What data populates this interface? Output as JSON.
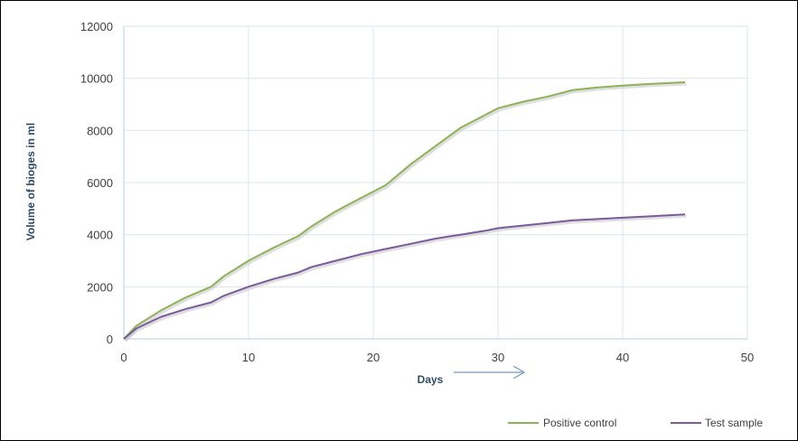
{
  "chart_data": {
    "type": "line",
    "title": "",
    "xlabel": "Days",
    "ylabel": "Volume of bioges in ml",
    "xlim": [
      0,
      50
    ],
    "ylim": [
      0,
      12000
    ],
    "x_ticks": [
      0,
      10,
      20,
      30,
      40,
      50
    ],
    "y_ticks": [
      0,
      2000,
      4000,
      6000,
      8000,
      10000,
      12000
    ],
    "grid": true,
    "legend_position": "bottom-right",
    "series": [
      {
        "name": "Positive control",
        "color": "#8db356",
        "x": [
          0,
          1,
          3,
          5,
          7,
          8,
          10,
          12,
          14,
          15,
          17,
          19,
          21,
          23,
          25,
          27,
          29,
          30,
          32,
          34,
          36,
          38,
          40,
          42,
          45
        ],
        "y": [
          0,
          500,
          1100,
          1600,
          2000,
          2400,
          3000,
          3500,
          3950,
          4300,
          4900,
          5400,
          5900,
          6700,
          7400,
          8100,
          8600,
          8850,
          9100,
          9300,
          9550,
          9650,
          9720,
          9780,
          9850
        ]
      },
      {
        "name": "Test sample",
        "color": "#7a5a9c",
        "x": [
          0,
          1,
          3,
          5,
          7,
          8,
          10,
          12,
          14,
          15,
          17,
          19,
          21,
          23,
          25,
          27,
          29,
          30,
          32,
          34,
          36,
          38,
          40,
          42,
          45
        ],
        "y": [
          0,
          400,
          850,
          1150,
          1400,
          1650,
          2000,
          2300,
          2550,
          2750,
          3000,
          3250,
          3450,
          3650,
          3850,
          4000,
          4150,
          4250,
          4350,
          4450,
          4550,
          4600,
          4650,
          4700,
          4780
        ]
      }
    ]
  }
}
